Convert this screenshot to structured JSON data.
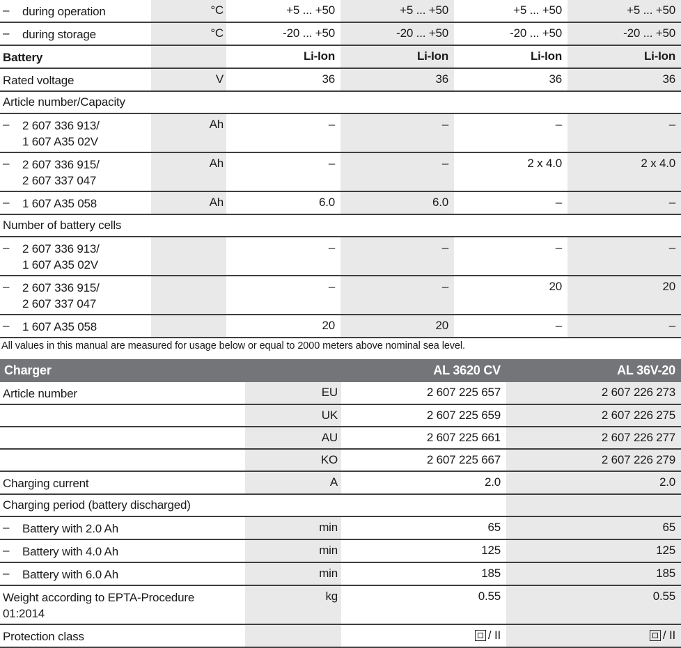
{
  "battery_table": {
    "rows": [
      {
        "dash": "–",
        "label": "during operation",
        "unit": "°C",
        "values": [
          "+5 ... +50",
          "+5 ... +50",
          "+5 ... +50",
          "+5 ... +50"
        ]
      },
      {
        "dash": "–",
        "label": "during storage",
        "unit": "°C",
        "values": [
          "-20 ... +50",
          "-20 ... +50",
          "-20 ... +50",
          "-20 ... +50"
        ]
      },
      {
        "dash": "",
        "label": "Battery",
        "unit": "",
        "values": [
          "Li-Ion",
          "Li-Ion",
          "Li-Ion",
          "Li-Ion"
        ]
      },
      {
        "dash": "",
        "label": "Rated voltage",
        "unit": "V",
        "values": [
          "36",
          "36",
          "36",
          "36"
        ]
      },
      {
        "dash": "",
        "label": "Article number/Capacity",
        "unit": "",
        "values": [
          "",
          "",
          "",
          ""
        ]
      },
      {
        "dash": "–",
        "label": "2 607 336 913/\n1 607 A35 02V",
        "unit": "Ah",
        "values": [
          "–",
          "–",
          "–",
          "–"
        ]
      },
      {
        "dash": "–",
        "label": "2 607 336 915/\n2 607 337 047",
        "unit": "Ah",
        "values": [
          "–",
          "–",
          "2 x 4.0",
          "2 x 4.0"
        ]
      },
      {
        "dash": "–",
        "label": "1 607 A35 058",
        "unit": "Ah",
        "values": [
          "6.0",
          "6.0",
          "–",
          "–"
        ]
      },
      {
        "dash": "",
        "label": "Number of battery cells",
        "unit": "",
        "values": [
          "",
          "",
          "",
          ""
        ]
      },
      {
        "dash": "–",
        "label": "2 607 336 913/\n1 607 A35 02V",
        "unit": "",
        "values": [
          "–",
          "–",
          "–",
          "–"
        ]
      },
      {
        "dash": "–",
        "label": "2 607 336 915/\n2 607 337 047",
        "unit": "",
        "values": [
          "–",
          "–",
          "20",
          "20"
        ]
      },
      {
        "dash": "–",
        "label": "1 607 A35 058",
        "unit": "",
        "values": [
          "20",
          "20",
          "–",
          "–"
        ]
      }
    ],
    "footnote": "All values in this manual are measured for usage below or equal to 2000 meters above nominal sea level."
  },
  "charger_table": {
    "header": {
      "title": "Charger",
      "col1": "AL 3620 CV",
      "col2": "AL 36V-20"
    },
    "rows": [
      {
        "dash": "",
        "label": "Article number",
        "unit": "EU",
        "values": [
          "2 607 225 657",
          "2 607 226 273"
        ]
      },
      {
        "dash": "",
        "label": "",
        "unit": "UK",
        "values": [
          "2 607 225 659",
          "2 607 226 275"
        ]
      },
      {
        "dash": "",
        "label": "",
        "unit": "AU",
        "values": [
          "2 607 225 661",
          "2 607 226 277"
        ]
      },
      {
        "dash": "",
        "label": "",
        "unit": "KO",
        "values": [
          "2 607 225 667",
          "2 607 226 279"
        ]
      },
      {
        "dash": "",
        "label": "Charging current",
        "unit": "A",
        "values": [
          "2.0",
          "2.0"
        ]
      },
      {
        "dash": "",
        "label": "Charging period (battery discharged)",
        "unit": "",
        "values": [
          "",
          ""
        ]
      },
      {
        "dash": "–",
        "label": "Battery with 2.0 Ah",
        "unit": "min",
        "values": [
          "65",
          "65"
        ]
      },
      {
        "dash": "–",
        "label": "Battery with 4.0 Ah",
        "unit": "min",
        "values": [
          "125",
          "125"
        ]
      },
      {
        "dash": "–",
        "label": "Battery with 6.0 Ah",
        "unit": "min",
        "values": [
          "185",
          "185"
        ]
      },
      {
        "dash": "",
        "label": "Weight according to EPTA-Procedure\n01:2014",
        "unit": "kg",
        "values": [
          "0.55",
          "0.55"
        ]
      },
      {
        "dash": "",
        "label": "Protection class",
        "unit": "",
        "values": [
          "/ II",
          "/ II"
        ],
        "icon": "double-insulation-icon"
      }
    ]
  },
  "colors": {
    "shade": "#e9e9e9",
    "header_bar": "#747578",
    "border": "#3f3f41",
    "text": "#1a1a1a"
  }
}
